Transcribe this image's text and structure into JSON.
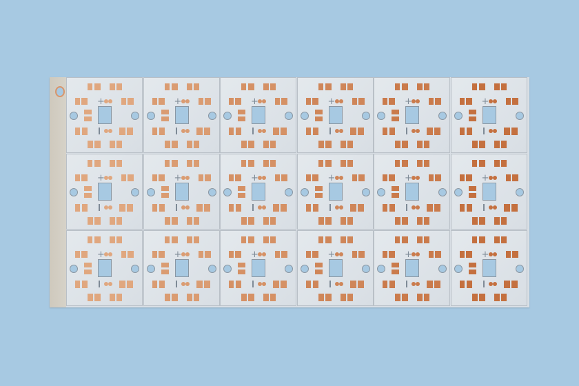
{
  "scene": {
    "subject": "",
    "panel_rows": 3,
    "panel_columns": 6
  },
  "colors": {
    "background": "#a7c9e2",
    "board": "#dce2e7",
    "copper_light": "#e0a77f",
    "copper_dark": "#c4703f",
    "hole_fill": "#a7c9e2"
  }
}
